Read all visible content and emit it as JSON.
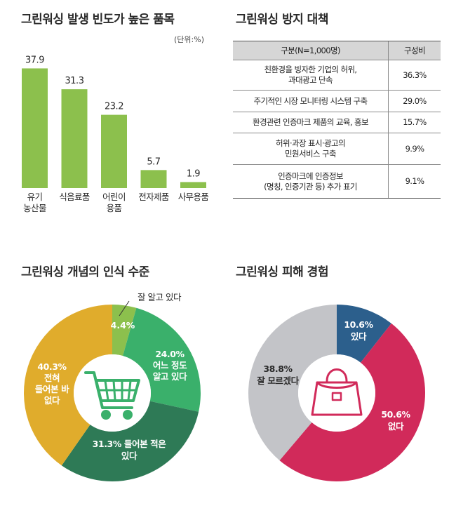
{
  "bar_panel": {
    "title": "그린워싱 발생 빈도가 높은 품목",
    "unit": "(단위:%)"
  },
  "table_panel": {
    "title": "그린워싱 방지 대책",
    "headers": [
      "구분(N=1,000명)",
      "구성비"
    ],
    "rows": [
      {
        "label": "친환경을 빙자한 기업의 허위,\n과대광고 단속",
        "value": "36.3%"
      },
      {
        "label": "주기적인 시장 모니터링 시스템 구축",
        "value": "29.0%"
      },
      {
        "label": "환경관련 인증마크 제품의 교육, 홍보",
        "value": "15.7%"
      },
      {
        "label": "허위·과장 표시·광고의\n민원서비스 구축",
        "value": "9.9%"
      },
      {
        "label": "인증마크에 인증정보\n(명칭, 인증기관 등) 추가 표기",
        "value": "9.1%"
      }
    ]
  },
  "donut1_panel": {
    "title": "그린워싱 개념의 인식 수준"
  },
  "donut2_panel": {
    "title": "그린워싱 피해 경험"
  },
  "colors": {
    "bar": "#8cc04d",
    "text": "#2a2a2a",
    "d1_small": "#8cc04d",
    "d1_know": "#3ab06b",
    "d1_heard": "#2e7a56",
    "d1_none": "#e0ac2c",
    "d2_yes": "#2c5f8c",
    "d2_no": "#d12a5a",
    "d2_dk": "#c3c4c8",
    "icon_cart": "#3ab06b",
    "icon_bag": "#d12a5a"
  },
  "icons": {
    "donut1_center": "shopping-cart-icon",
    "donut2_center": "handbag-icon"
  },
  "chart_data": [
    {
      "type": "bar",
      "title": "그린워싱 발생 빈도가 높은 품목",
      "unit": "(단위:%)",
      "categories": [
        "유기\n농산물",
        "식음료품",
        "어린이\n용품",
        "전자제품",
        "사무용품"
      ],
      "values": [
        37.9,
        31.3,
        23.2,
        5.7,
        1.9
      ],
      "value_labels": [
        "37.9",
        "31.3",
        "23.2",
        "5.7",
        "1.9"
      ],
      "ylim": [
        0,
        40
      ],
      "grid": false
    },
    {
      "type": "pie",
      "title": "그린워싱 개념의 인식 수준",
      "slices": [
        {
          "label": "잘 알고 있다",
          "pct": "4.4%",
          "value": 4.4
        },
        {
          "label": "어느 정도\n알고 있다",
          "pct": "24.0%",
          "value": 24.0
        },
        {
          "label": "들어본 적은\n있다",
          "pct": "31.3%",
          "value": 31.3
        },
        {
          "label": "전혀\n들어본 바\n없다",
          "pct": "40.3%",
          "value": 40.3
        }
      ]
    },
    {
      "type": "pie",
      "title": "그린워싱 피해 경험",
      "slices": [
        {
          "label": "있다",
          "pct": "10.6%",
          "value": 10.6
        },
        {
          "label": "없다",
          "pct": "50.6%",
          "value": 50.6
        },
        {
          "label": "잘 모르겠다",
          "pct": "38.8%",
          "value": 38.8
        }
      ]
    }
  ]
}
